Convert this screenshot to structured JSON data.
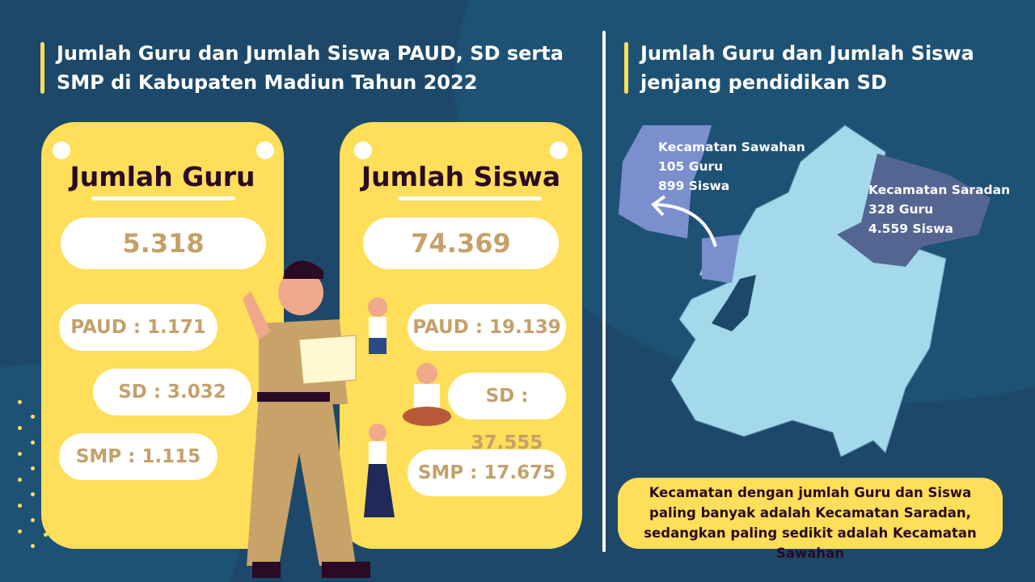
{
  "left": {
    "title": "Jumlah Guru dan Jumlah Siswa PAUD, SD serta SMP di Kabupaten Madiun Tahun 2022",
    "guru": {
      "heading": "Jumlah Guru",
      "total": "5.318",
      "items": [
        "PAUD : 1.171",
        "SD : 3.032",
        "SMP : 1.115"
      ]
    },
    "siswa": {
      "heading": "Jumlah Siswa",
      "total": "74.369",
      "items": [
        "PAUD : 19.139",
        "SD : 37.555",
        "SMP : 17.675"
      ]
    }
  },
  "right": {
    "title": "Jumlah Guru dan Jumlah Siswa jenjang pendidikan SD",
    "sawahan": {
      "name": "Kecamatan Sawahan",
      "guru": "105 Guru",
      "siswa": "899 Siswa"
    },
    "saradan": {
      "name": "Kecamatan Saradan",
      "guru": "328 Guru",
      "siswa": "4.559 Siswa"
    },
    "note": "Kecamatan dengan jumlah Guru dan Siswa paling banyak adalah Kecamatan Saradan, sedangkan paling sedikit adalah Kecamatan Sawahan"
  },
  "colors": {
    "background": "#1d4869",
    "card": "#ffde59",
    "value": "#c4a16a",
    "map": "#a3d9eb",
    "sawahan": "#7b8fcf",
    "saradan": "#556591"
  }
}
